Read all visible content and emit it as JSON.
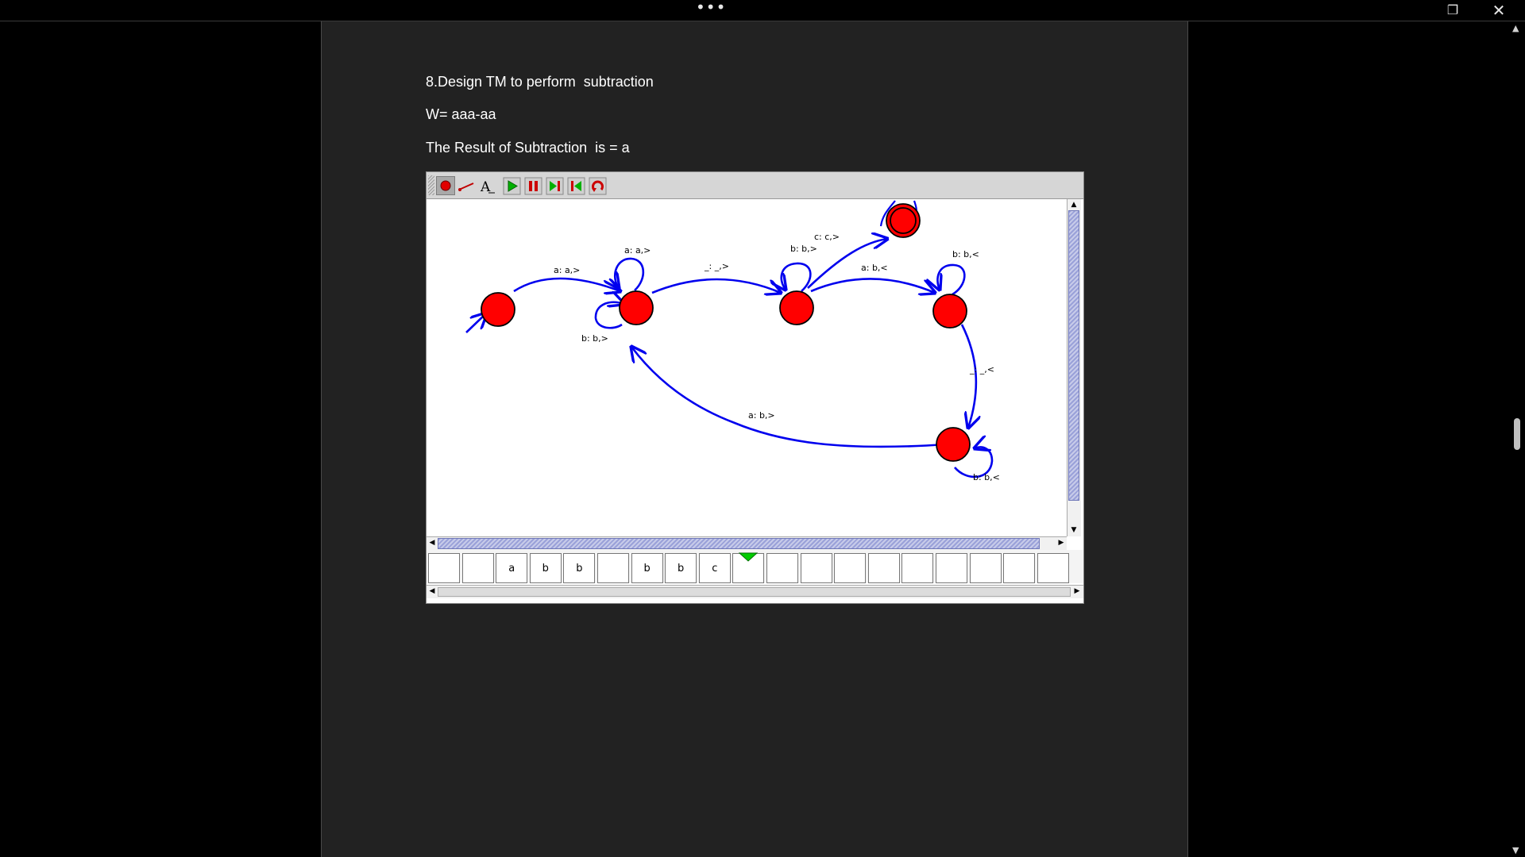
{
  "window": {
    "menu_dots": "•••",
    "restore_glyph": "❐",
    "close_glyph": "✕"
  },
  "document": {
    "line1": "8.Design TM to perform  subtraction",
    "line2": "W= aaa-aa",
    "line3": "The Result of Subtraction  is = a"
  },
  "toolbar": {
    "tools": [
      "state-tool",
      "transition-tool",
      "label-tool",
      "run-button",
      "pause-button",
      "step-forward-button",
      "step-back-button",
      "reset-button"
    ],
    "active_tool": "state-tool"
  },
  "diagram": {
    "state_color": "#ff0000",
    "edge_color": "#0000ee",
    "transitions": {
      "t01": "a: a,>",
      "t11a": "a: a,>",
      "t11b": "b: b,>",
      "t12": "_: _,>",
      "t22": "b: b,>",
      "t2f": "c: c,>",
      "t23": "a: b,<",
      "t33": "b: b,<",
      "t34": "_: _,<",
      "t41": "a: b,>",
      "t44": "b: b,<"
    }
  },
  "tape": {
    "cells": [
      "",
      "",
      "a",
      "b",
      "b",
      "",
      "b",
      "b",
      "c",
      "",
      "",
      "",
      "",
      "",
      "",
      "",
      "",
      "",
      ""
    ],
    "head_index": 9,
    "head_color": "#00cc00"
  }
}
